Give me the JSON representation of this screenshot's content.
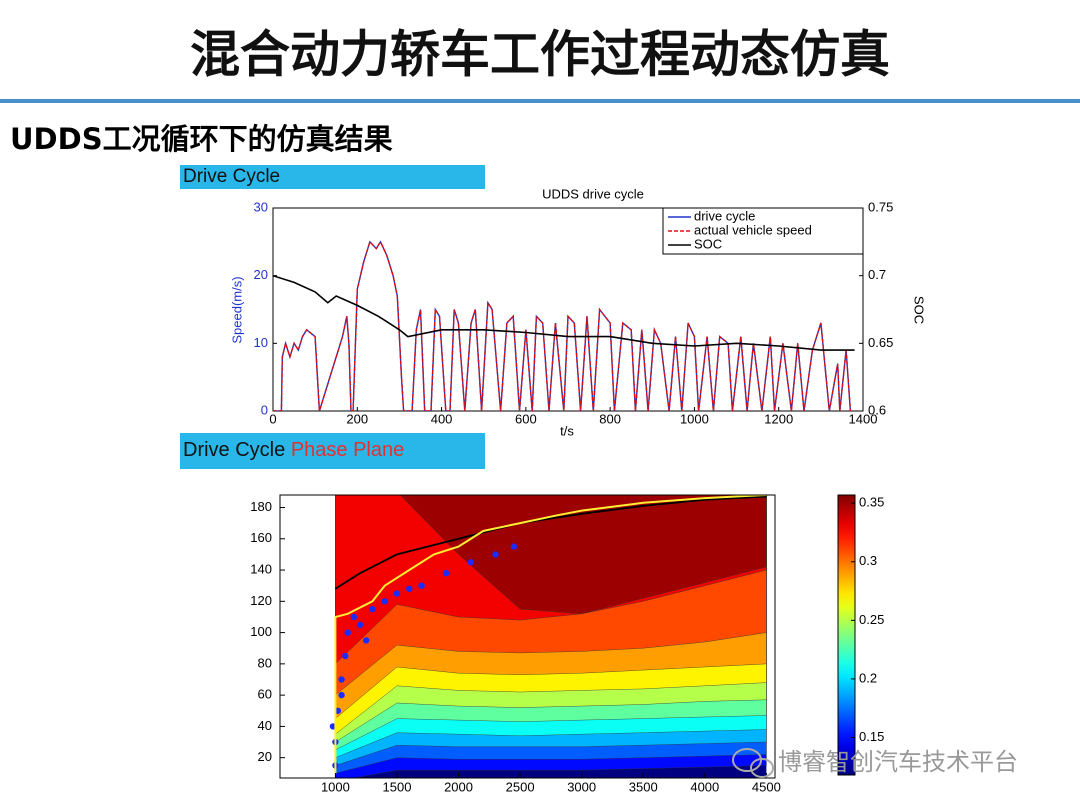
{
  "title": "混合动力轿车工作过程动态仿真",
  "subtitle": "UDDS工况循环下的仿真结果",
  "section_1": "Drive Cycle",
  "section_2": {
    "left": "Drive Cycle",
    "right": "Phase Plane"
  },
  "watermark": "博睿智创汽车技术平台",
  "chart_data": [
    {
      "type": "line",
      "title": "UDDS drive cycle",
      "y_label": "Speed(m/s)",
      "y2_label": "SOC",
      "x_label": "t/s",
      "xlim": [
        0,
        1400
      ],
      "xticks": [
        0,
        200,
        400,
        600,
        800,
        1000,
        1200,
        1400
      ],
      "ylim": [
        0,
        30
      ],
      "yticks": [
        0,
        10,
        20,
        30
      ],
      "y2lim": [
        0.6,
        0.75
      ],
      "y2ticks": [
        0.6,
        0.65,
        0.7,
        0.75
      ],
      "legend": "upper right",
      "x": [
        0,
        20,
        22,
        30,
        40,
        50,
        60,
        70,
        80,
        100,
        110,
        165,
        175,
        180,
        185,
        190,
        200,
        215,
        230,
        245,
        255,
        270,
        285,
        295,
        305,
        310,
        330,
        340,
        350,
        360,
        375,
        385,
        395,
        410,
        420,
        430,
        440,
        455,
        470,
        480,
        495,
        510,
        520,
        540,
        555,
        570,
        585,
        600,
        615,
        625,
        640,
        655,
        670,
        690,
        700,
        715,
        730,
        745,
        760,
        775,
        800,
        810,
        830,
        850,
        860,
        875,
        890,
        905,
        920,
        940,
        955,
        970,
        985,
        1000,
        1010,
        1030,
        1045,
        1060,
        1080,
        1090,
        1110,
        1125,
        1140,
        1160,
        1180,
        1190,
        1210,
        1230,
        1245,
        1260,
        1280,
        1300,
        1320,
        1340,
        1345,
        1360,
        1370
      ],
      "series": [
        {
          "name": "drive cycle",
          "color": "#2233cc",
          "dash": false,
          "values": [
            0,
            0,
            8,
            10,
            8,
            10,
            9,
            11,
            12,
            11,
            0,
            11,
            14,
            10,
            0,
            0,
            18,
            22,
            25,
            24,
            25,
            23,
            20,
            17,
            5,
            0,
            0,
            12,
            15,
            0,
            0,
            15,
            14,
            0,
            0,
            15,
            13,
            0,
            13,
            15,
            0,
            16,
            15,
            0,
            13,
            14,
            0,
            12,
            0,
            14,
            13,
            0,
            13,
            0,
            14,
            13,
            0,
            14,
            0,
            15,
            13,
            0,
            13,
            12,
            0,
            12,
            0,
            12,
            10,
            0,
            11,
            0,
            13,
            11,
            0,
            11,
            0,
            11,
            10,
            0,
            11,
            0,
            10,
            0,
            11,
            0,
            10,
            0,
            10,
            0,
            9,
            13,
            0,
            7,
            0,
            9,
            0
          ]
        },
        {
          "name": "actual vehicle speed",
          "color": "#dd1111",
          "dash": true,
          "values": [
            0,
            0,
            8,
            10,
            8,
            10,
            9,
            11,
            12,
            11,
            0,
            11,
            14,
            10,
            0,
            0,
            18,
            22,
            25,
            24,
            25,
            23,
            20,
            17,
            5,
            0,
            0,
            12,
            15,
            0,
            0,
            15,
            14,
            0,
            0,
            15,
            13,
            0,
            13,
            15,
            0,
            16,
            15,
            0,
            13,
            14,
            0,
            12,
            0,
            14,
            13,
            0,
            13,
            0,
            14,
            13,
            0,
            14,
            0,
            15,
            13,
            0,
            13,
            12,
            0,
            12,
            0,
            12,
            10,
            0,
            11,
            0,
            13,
            11,
            0,
            11,
            0,
            11,
            10,
            0,
            11,
            0,
            10,
            0,
            11,
            0,
            10,
            0,
            10,
            0,
            9,
            13,
            0,
            7,
            0,
            9,
            0
          ]
        },
        {
          "name": "SOC",
          "color": "#000000",
          "dash": false,
          "axis": "y2",
          "x": [
            0,
            50,
            100,
            130,
            150,
            200,
            250,
            300,
            320,
            400,
            500,
            600,
            700,
            800,
            900,
            1000,
            1100,
            1200,
            1300,
            1380
          ],
          "values": [
            0.7,
            0.695,
            0.688,
            0.68,
            0.685,
            0.678,
            0.67,
            0.66,
            0.655,
            0.66,
            0.66,
            0.658,
            0.655,
            0.655,
            0.65,
            0.648,
            0.65,
            0.648,
            0.645,
            0.645
          ]
        }
      ]
    },
    {
      "type": "contour",
      "xlim": [
        550,
        4570
      ],
      "xticks": [
        1000,
        1500,
        2000,
        2500,
        3000,
        3500,
        4000,
        4500
      ],
      "ylim": [
        7,
        188
      ],
      "yticks": [
        20,
        40,
        60,
        80,
        100,
        120,
        140,
        160,
        180
      ],
      "clim": [
        0.118,
        0.357
      ],
      "colorbar_ticks": [
        0.15,
        0.2,
        0.25,
        0.3,
        0.35
      ],
      "colormap": "jet",
      "contour": {
        "x": [
          1000,
          1500,
          2000,
          2500,
          3000,
          3500,
          4000,
          4500
        ],
        "levels": [
          {
            "level": 0.15,
            "y": [
              5,
              12,
              12,
              12,
              12,
              13,
              14,
              15
            ]
          },
          {
            "level": 0.17,
            "y": [
              10,
              20,
              19,
              19,
              19,
              20,
              21,
              22
            ]
          },
          {
            "level": 0.19,
            "y": [
              15,
              28,
              27,
              27,
              27,
              28,
              29,
              30
            ]
          },
          {
            "level": 0.21,
            "y": [
              20,
              36,
              35,
              34,
              35,
              36,
              37,
              38
            ]
          },
          {
            "level": 0.23,
            "y": [
              25,
              45,
              44,
              43,
              44,
              45,
              46,
              47
            ]
          },
          {
            "level": 0.25,
            "y": [
              30,
              55,
              53,
              52,
              53,
              54,
              56,
              57
            ]
          },
          {
            "level": 0.27,
            "y": [
              35,
              66,
              63,
              62,
              63,
              64,
              66,
              68
            ]
          },
          {
            "level": 0.29,
            "y": [
              45,
              78,
              74,
              73,
              74,
              76,
              78,
              80
            ]
          },
          {
            "level": 0.31,
            "y": [
              60,
              92,
              88,
              87,
              88,
              90,
              94,
              100
            ]
          },
          {
            "level": 0.33,
            "y": [
              80,
              118,
              110,
              108,
              112,
              120,
              130,
              140
            ]
          },
          {
            "level": 0.35,
            "y": [
              190,
              190,
              150,
              115,
              112,
              122,
              132,
              142
            ]
          }
        ]
      },
      "max_torque": {
        "color": "#000000",
        "x": [
          1000,
          1200,
          1500,
          2000,
          2500,
          3000,
          3500,
          4000,
          4500
        ],
        "values": [
          128,
          138,
          150,
          160,
          170,
          176,
          181,
          185,
          187
        ]
      },
      "operating_line": {
        "color": "#ffee33",
        "x": [
          1000,
          1000,
          1000,
          1100,
          1300,
          1400,
          1600,
          1800,
          2000,
          2200,
          2500,
          2800,
          3000,
          3200,
          3500,
          4000,
          4500
        ],
        "values": [
          10,
          100,
          110,
          112,
          120,
          130,
          140,
          150,
          155,
          165,
          170,
          175,
          178,
          180,
          183,
          186,
          188
        ]
      },
      "points": {
        "color": "#1a2cff",
        "x": [
          1000,
          1020,
          1050,
          1080,
          1100,
          1150,
          1200,
          1300,
          1400,
          1500,
          1700,
          1900,
          2100,
          2300,
          2450,
          1000,
          1050,
          980,
          1250,
          1600
        ],
        "values": [
          30,
          50,
          70,
          85,
          100,
          110,
          105,
          115,
          120,
          125,
          130,
          138,
          145,
          150,
          155,
          15,
          60,
          40,
          95,
          128
        ]
      }
    }
  ]
}
